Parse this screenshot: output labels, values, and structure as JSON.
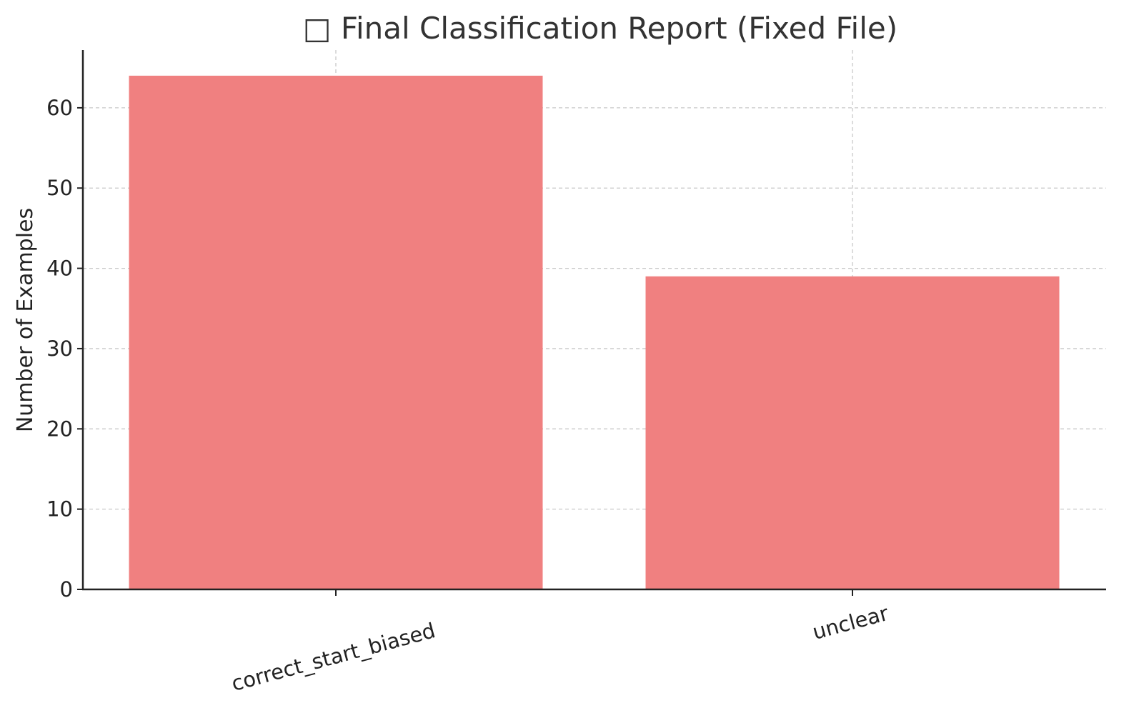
{
  "chart_data": {
    "type": "bar",
    "title": "□ Final Classification Report (Fixed File)",
    "xlabel": "",
    "ylabel": "Number of Examples",
    "categories": [
      "correct_start_biased",
      "unclear"
    ],
    "values": [
      64,
      39
    ],
    "ylim": [
      0,
      67.2
    ],
    "yticks": [
      0,
      10,
      20,
      30,
      40,
      50,
      60
    ],
    "grid": true,
    "bar_color": "#f08080",
    "axis_color": "#222222",
    "grid_color": "#c8c8c8",
    "text_color": "#333333"
  }
}
